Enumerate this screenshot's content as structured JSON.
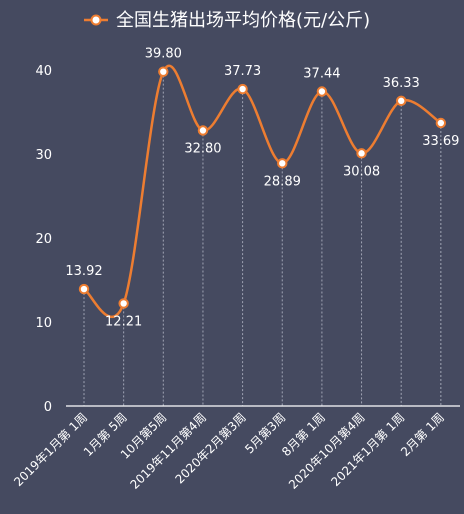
{
  "chart_data": {
    "type": "line",
    "title": "全国生猪出场平均价格(元/公斤)",
    "legend": "top-center",
    "smooth": true,
    "show_markers": true,
    "grid": false,
    "drop_lines": true,
    "categories": [
      "2019年1月第 1周",
      "1月第 5周",
      "10月第5周",
      "2019年11月第4周",
      "2020年2月第3周",
      "5月第3周",
      "8月第 1周",
      "2020年10月第4周",
      "2021年1月第 1周",
      "2月第 1周"
    ],
    "series": [
      {
        "name": "全国生猪出场平均价格(元/公斤)",
        "values": [
          13.92,
          12.21,
          39.8,
          32.8,
          37.73,
          28.89,
          37.44,
          30.08,
          36.33,
          33.69
        ],
        "value_labels": [
          "13.92",
          "12.21",
          "39.80",
          "32.80",
          "37.73",
          "28.89",
          "37.44",
          "30.08",
          "36.33",
          "33.69"
        ]
      }
    ],
    "ylim": [
      0,
      40
    ],
    "yticks": [
      "0",
      "10",
      "20",
      "30",
      "40"
    ],
    "colors": {
      "background": "#454a60",
      "line": "#ed7d31",
      "marker_fill": "#ffffff",
      "text": "#ffffff",
      "drop_line": "#a0a4b4"
    }
  }
}
